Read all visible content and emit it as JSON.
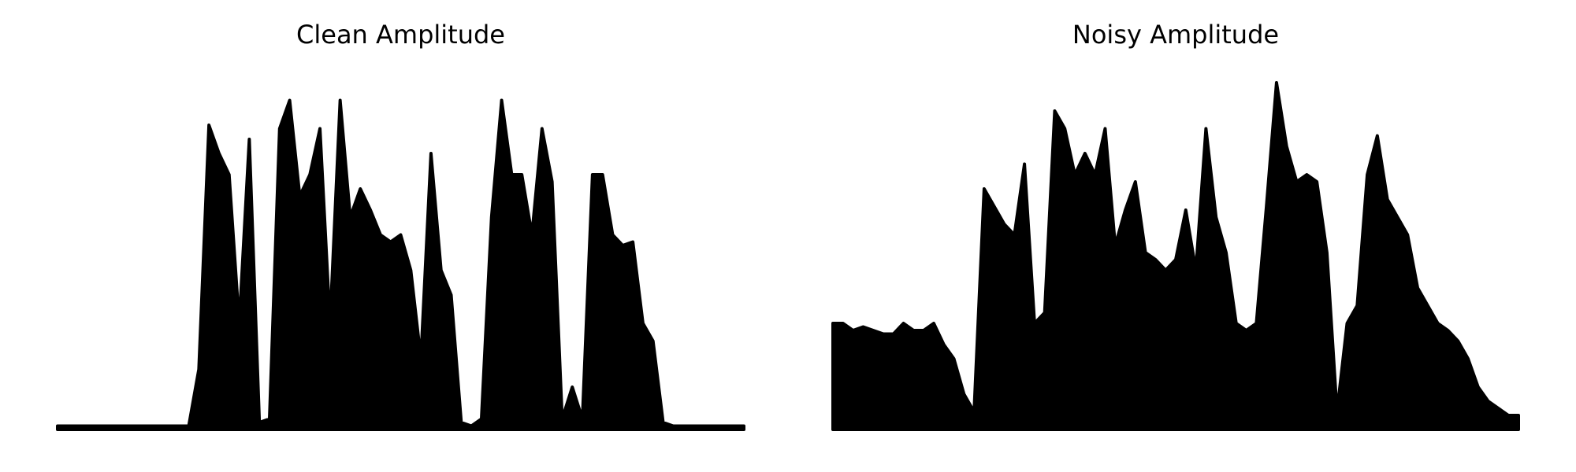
{
  "chart_data": [
    {
      "type": "area",
      "title": "Clean Amplitude",
      "color": "#000000",
      "ylim": [
        0,
        1
      ],
      "values": [
        0.01,
        0.01,
        0.01,
        0.01,
        0.01,
        0.01,
        0.01,
        0.01,
        0.01,
        0.01,
        0.01,
        0.01,
        0.01,
        0.01,
        0.17,
        0.86,
        0.78,
        0.72,
        0.3,
        0.82,
        0.02,
        0.03,
        0.85,
        0.93,
        0.66,
        0.72,
        0.85,
        0.3,
        0.93,
        0.6,
        0.68,
        0.62,
        0.55,
        0.53,
        0.55,
        0.45,
        0.2,
        0.78,
        0.45,
        0.38,
        0.02,
        0.01,
        0.03,
        0.6,
        0.93,
        0.72,
        0.72,
        0.55,
        0.85,
        0.7,
        0.03,
        0.12,
        0.03,
        0.72,
        0.72,
        0.55,
        0.52,
        0.53,
        0.3,
        0.25,
        0.02,
        0.01,
        0.01,
        0.01,
        0.01,
        0.01,
        0.01,
        0.01,
        0.01
      ]
    },
    {
      "type": "area",
      "title": "Noisy Amplitude",
      "color": "#000000",
      "ylim": [
        0,
        1
      ],
      "values": [
        0.3,
        0.3,
        0.28,
        0.29,
        0.28,
        0.27,
        0.27,
        0.3,
        0.28,
        0.28,
        0.3,
        0.24,
        0.2,
        0.1,
        0.05,
        0.68,
        0.63,
        0.58,
        0.55,
        0.75,
        0.3,
        0.33,
        0.9,
        0.85,
        0.72,
        0.78,
        0.72,
        0.85,
        0.52,
        0.62,
        0.7,
        0.5,
        0.48,
        0.45,
        0.48,
        0.62,
        0.45,
        0.85,
        0.6,
        0.5,
        0.3,
        0.28,
        0.3,
        0.63,
        0.98,
        0.8,
        0.7,
        0.72,
        0.7,
        0.5,
        0.05,
        0.3,
        0.35,
        0.72,
        0.83,
        0.65,
        0.6,
        0.55,
        0.4,
        0.35,
        0.3,
        0.28,
        0.25,
        0.2,
        0.12,
        0.08,
        0.06,
        0.04,
        0.04
      ]
    }
  ]
}
